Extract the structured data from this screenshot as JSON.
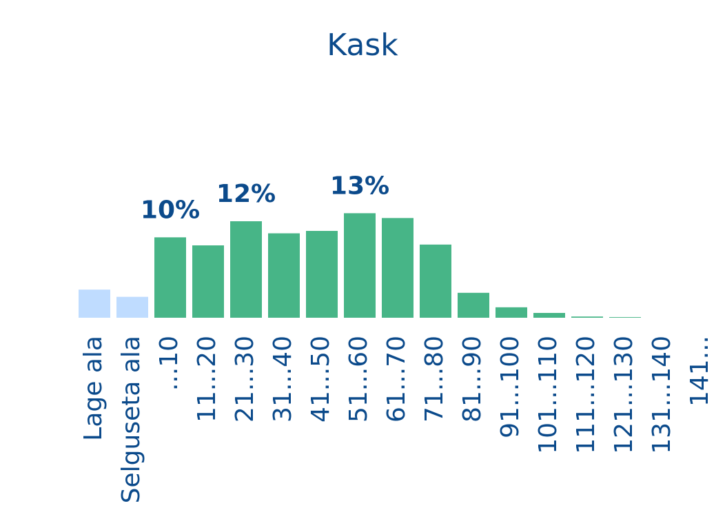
{
  "chart_data": {
    "type": "bar",
    "title": "Kask",
    "xlabel": "",
    "ylabel": "",
    "ylim": [
      0,
      15
    ],
    "grid": false,
    "legend": "none",
    "categories": [
      "Lage ala",
      "Selguseta ala",
      "...10",
      "11...20",
      "21...30",
      "31...40",
      "41...50",
      "51...60",
      "61...70",
      "71...80",
      "81...90",
      "91...100",
      "101...110",
      "111...120",
      "121...130",
      "131...140",
      "141..."
    ],
    "values": [
      3.5,
      2.6,
      10,
      9,
      12,
      10.5,
      10.8,
      13,
      12.4,
      9.1,
      3.1,
      1.3,
      0.6,
      0.15,
      0.08,
      0,
      0
    ],
    "colors": [
      "#bfdcff",
      "#bfdcff",
      "#47b587",
      "#47b587",
      "#47b587",
      "#47b587",
      "#47b587",
      "#47b587",
      "#47b587",
      "#47b587",
      "#47b587",
      "#47b587",
      "#47b587",
      "#47b587",
      "#47b587",
      "#47b587",
      "#47b587"
    ],
    "data_labels": [
      {
        "category": "...10",
        "text": "10%"
      },
      {
        "category": "21...30",
        "text": "12%"
      },
      {
        "category": "51...60",
        "text": "13%"
      }
    ],
    "text_color": "#0b4a8b"
  }
}
